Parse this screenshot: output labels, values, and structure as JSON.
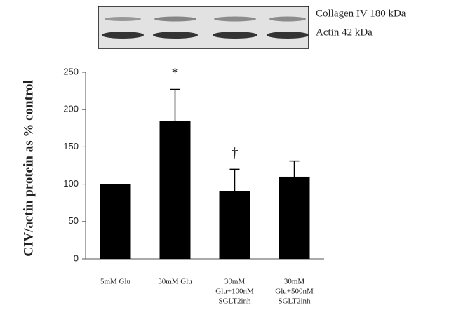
{
  "chart_data": {
    "type": "bar",
    "y_label": "CIV/actin protein as % control",
    "inset_labels": [
      "Collagen IV 180 kDa",
      "Actin 42 kDa"
    ],
    "categories": [
      [
        "5mM Glu"
      ],
      [
        "30mM Glu"
      ],
      [
        "30mM",
        "Glu+100nM",
        "SGLT2inh"
      ],
      [
        "30mM",
        "Glu+500nM",
        "SGLT2inh"
      ]
    ],
    "values": [
      100,
      185,
      91,
      110
    ],
    "errors": [
      null,
      42,
      29,
      21
    ],
    "annotations": [
      null,
      "*",
      "†",
      null
    ],
    "color": "#000000",
    "ylim": [
      0,
      250
    ],
    "yticks": [
      0,
      50,
      100,
      150,
      200,
      250
    ],
    "grid": false
  }
}
